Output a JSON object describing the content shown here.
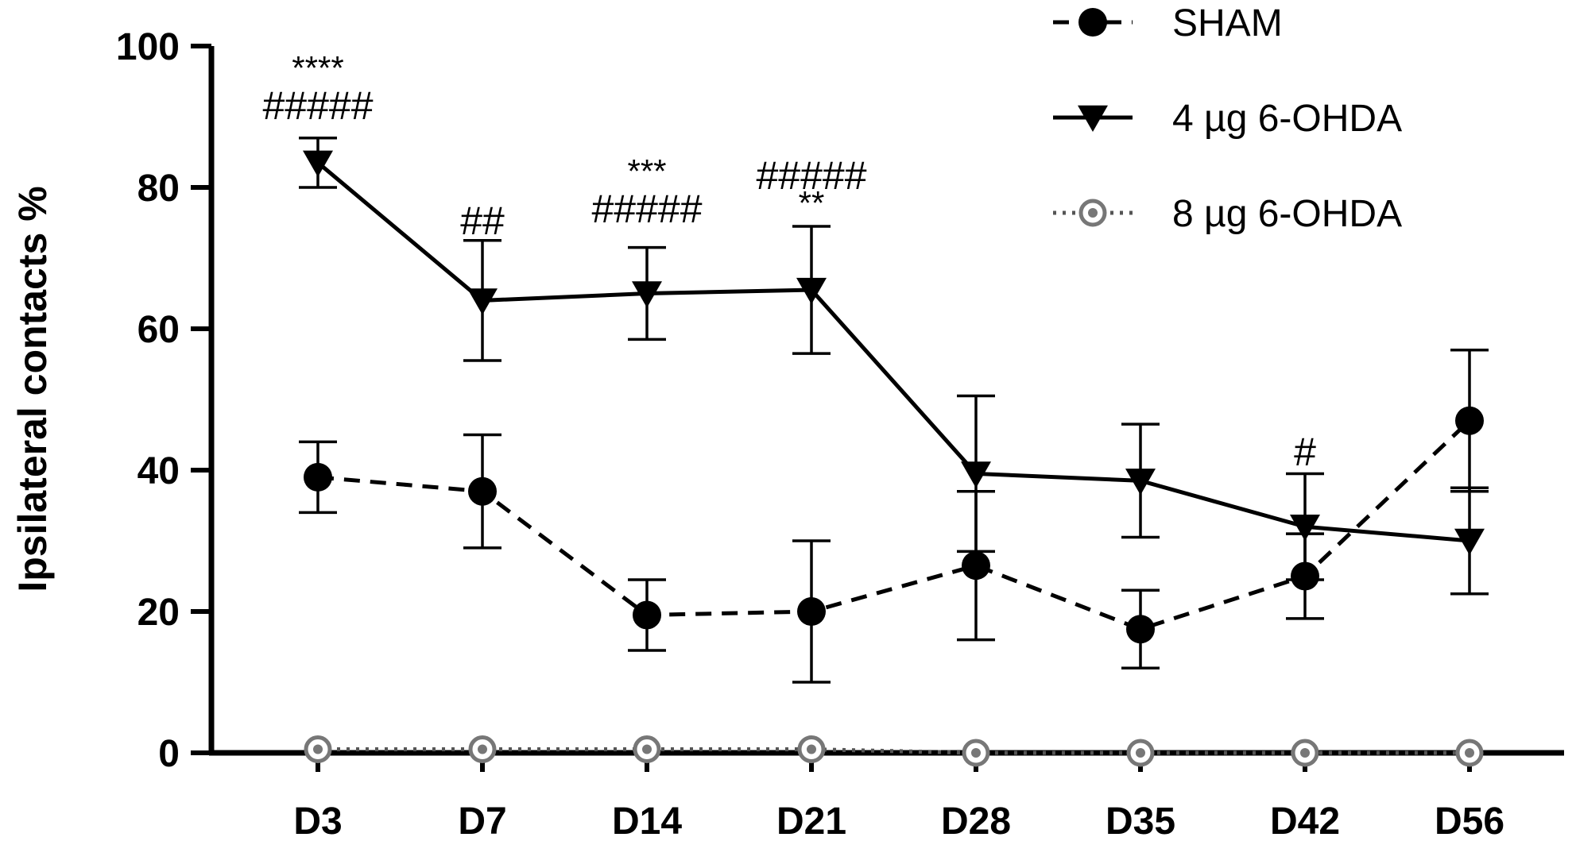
{
  "chart_data": {
    "type": "line",
    "xlabel": "",
    "ylabel": "Ipsilateral contacts %",
    "ylim": [
      0,
      100
    ],
    "yticks": [
      0,
      20,
      40,
      60,
      80,
      100
    ],
    "categories": [
      "D3",
      "D7",
      "D14",
      "D21",
      "D28",
      "D35",
      "D42",
      "D56"
    ],
    "legend_position": "top-right",
    "grid": false,
    "series": [
      {
        "name": "SHAM",
        "line_style": "dashed",
        "marker": "circle-filled",
        "color": "#000000",
        "values": [
          39,
          37,
          19.5,
          20,
          26.5,
          17.5,
          25,
          47
        ],
        "error": [
          5,
          8,
          5,
          10,
          10.5,
          5.5,
          6,
          10
        ]
      },
      {
        "name": "4 µg 6-OHDA",
        "line_style": "solid",
        "marker": "triangle-down",
        "color": "#000000",
        "values": [
          83.5,
          64,
          65,
          65.5,
          39.5,
          38.5,
          32,
          30
        ],
        "error": [
          3.5,
          8.5,
          6.5,
          9,
          11,
          8,
          7.5,
          7.5
        ]
      },
      {
        "name": "8 µg 6-OHDA",
        "line_style": "dotted",
        "marker": "circle-ring",
        "color": "#888888",
        "values": [
          0.5,
          0.5,
          0.5,
          0.5,
          0,
          0,
          0,
          0
        ],
        "error": [
          0,
          0,
          0,
          0,
          0,
          0,
          0,
          0
        ]
      }
    ],
    "annotations": [
      {
        "category": "D3",
        "lines": [
          "****",
          "#####"
        ]
      },
      {
        "category": "D7",
        "lines": [
          "##"
        ]
      },
      {
        "category": "D14",
        "lines": [
          "***",
          "#####"
        ]
      },
      {
        "category": "D21",
        "lines": [
          "#####",
          "**"
        ]
      },
      {
        "category": "D42",
        "lines": [
          "#"
        ]
      }
    ]
  }
}
